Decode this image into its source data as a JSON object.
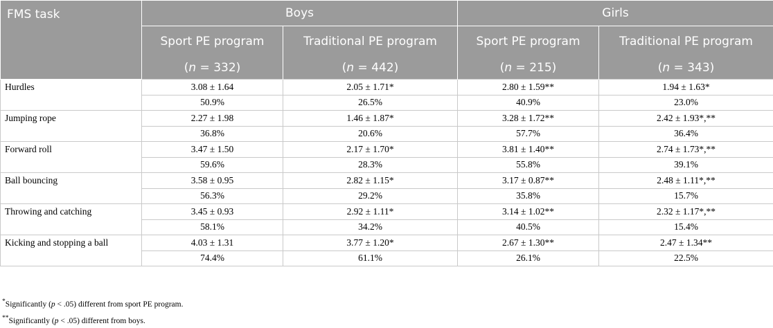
{
  "header": {
    "task_label": "FMS task",
    "groups": [
      "Boys",
      "Girls"
    ],
    "programs": [
      "Sport PE program",
      "Traditional PE program",
      "Sport PE program",
      "Traditional PE program"
    ],
    "n_values": [
      "332",
      "442",
      "215",
      "343"
    ]
  },
  "rows": [
    {
      "task": "Hurdles",
      "means": [
        "3.08 ± 1.64",
        "2.05 ± 1.71*",
        "2.80 ± 1.59**",
        "1.94 ± 1.63*"
      ],
      "percents": [
        "50.9%",
        "26.5%",
        "40.9%",
        "23.0%"
      ]
    },
    {
      "task": "Jumping rope",
      "means": [
        "2.27 ± 1.98",
        "1.46 ± 1.87*",
        "3.28 ± 1.72**",
        "2.42 ± 1.93*,**"
      ],
      "percents": [
        "36.8%",
        "20.6%",
        "57.7%",
        "36.4%"
      ]
    },
    {
      "task": "Forward roll",
      "means": [
        "3.47 ± 1.50",
        "2.17 ± 1.70*",
        "3.81 ± 1.40**",
        "2.74 ± 1.73*,**"
      ],
      "percents": [
        "59.6%",
        "28.3%",
        "55.8%",
        "39.1%"
      ]
    },
    {
      "task": "Ball bouncing",
      "means": [
        "3.58 ± 0.95",
        "2.82 ± 1.15*",
        "3.17 ± 0.87**",
        "2.48 ± 1.11*,**"
      ],
      "percents": [
        "56.3%",
        "29.2%",
        "35.8%",
        "15.7%"
      ]
    },
    {
      "task": "Throwing and catching",
      "means": [
        "3.45 ± 0.93",
        "2.92 ± 1.11*",
        "3.14 ± 1.02**",
        "2.32 ± 1.17*,**"
      ],
      "percents": [
        "58.1%",
        "34.2%",
        "40.5%",
        "15.4%"
      ]
    },
    {
      "task": "Kicking and stopping a ball",
      "means": [
        "4.03 ± 1.31",
        "3.77 ± 1.20*",
        "2.67 ± 1.30**",
        "2.47 ± 1.34**"
      ],
      "percents": [
        "74.4%",
        "61.1%",
        "26.1%",
        "22.5%"
      ]
    }
  ],
  "footnotes": [
    {
      "mark": "*",
      "before": "Significantly (",
      "p": "p",
      "after": " < .05) different from sport PE program."
    },
    {
      "mark": "**",
      "before": "Significantly (",
      "p": "p",
      "after": " < .05) different from boys."
    }
  ]
}
